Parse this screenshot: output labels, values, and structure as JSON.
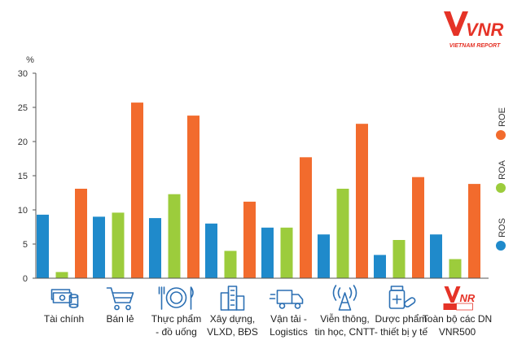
{
  "logo": {
    "mark": "VNR",
    "tagline": "VIETNAM REPORT"
  },
  "chart_data": {
    "type": "bar",
    "unit_label": "%",
    "ylim": [
      0,
      30
    ],
    "yticks": [
      0,
      5,
      10,
      15,
      20,
      25,
      30
    ],
    "grid": false,
    "legend_position": "right",
    "categories": [
      [
        "Tài chính"
      ],
      [
        "Bán lẻ"
      ],
      [
        "Thực phẩm",
        "- đồ uống"
      ],
      [
        "Xây dựng,",
        "VLXD, BĐS"
      ],
      [
        "Vận tải -",
        "Logistics"
      ],
      [
        "Viễn thông,",
        "tin học, CNTT"
      ],
      [
        "Dược phẩm",
        "- thiết bị y tế"
      ],
      [
        "Toàn bộ các DN",
        "VNR500"
      ]
    ],
    "category_icons": [
      "money-icon",
      "shopping-cart-icon",
      "plate-cutlery-icon",
      "buildings-icon",
      "truck-icon",
      "antenna-icon",
      "medicine-icon",
      "vnr500-logo-icon"
    ],
    "series": [
      {
        "name": "ROS",
        "color": "#1f8acb",
        "values": [
          9.3,
          9.0,
          8.8,
          8.0,
          7.4,
          6.4,
          3.4,
          6.4
        ]
      },
      {
        "name": "ROA",
        "color": "#9ccc3c",
        "values": [
          0.9,
          9.6,
          12.3,
          4.0,
          7.4,
          13.1,
          5.6,
          2.8
        ]
      },
      {
        "name": "ROE",
        "color": "#f26b2d",
        "values": [
          13.1,
          25.7,
          23.8,
          11.2,
          17.7,
          22.6,
          14.8,
          13.8
        ]
      }
    ]
  }
}
